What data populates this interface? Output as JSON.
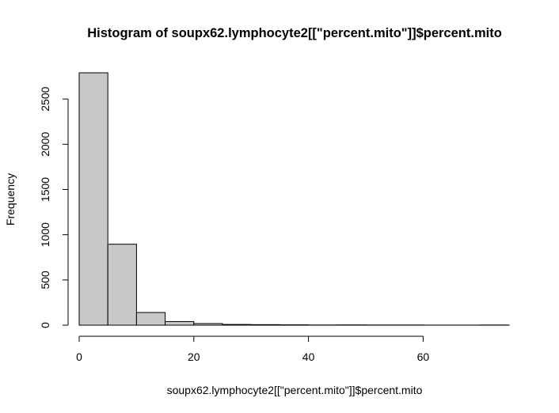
{
  "chart_data": {
    "type": "bar",
    "title": "Histogram of soupx62.lymphocyte2[[\"percent.mito\"]]$percent.mito",
    "xlabel": "soupx62.lymphocyte2[[\"percent.mito\"]]$percent.mito",
    "ylabel": "Frequency",
    "bin_edges": [
      0,
      5,
      10,
      15,
      20,
      25,
      30,
      35,
      40,
      45,
      50,
      55,
      60,
      65,
      70,
      75
    ],
    "values": [
      2790,
      895,
      140,
      40,
      18,
      8,
      6,
      4,
      2,
      3,
      2,
      2,
      1,
      1,
      2
    ],
    "xlim": [
      0,
      75
    ],
    "ylim": [
      0,
      2790
    ],
    "x_ticks": [
      0,
      20,
      40,
      60
    ],
    "y_ticks": [
      0,
      500,
      1000,
      1500,
      2000,
      2500
    ],
    "grid": false,
    "colors": {
      "bar_fill": "#c8c8c8",
      "bar_stroke": "#000000"
    }
  }
}
